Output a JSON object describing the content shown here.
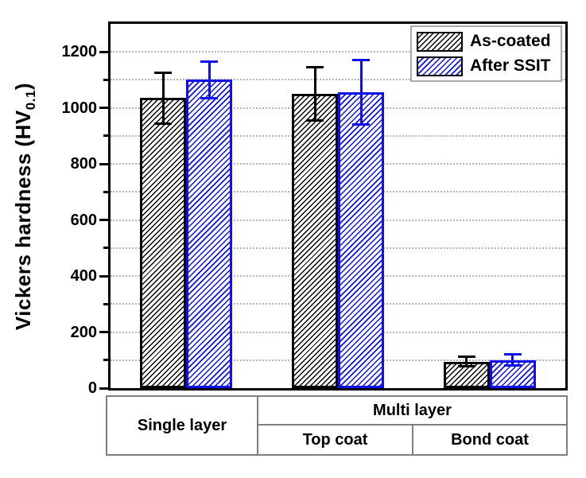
{
  "chart_data": {
    "type": "bar",
    "title": "",
    "categories": [
      "Single layer",
      "Top coat",
      "Bond coat"
    ],
    "series": [
      {
        "name": "As-coated",
        "color": "#000000",
        "hatch": "/",
        "values": [
          1035,
          1050,
          95
        ],
        "errors": [
          90,
          95,
          18
        ]
      },
      {
        "name": "After SSIT",
        "color": "#0f0fee",
        "hatch": "/",
        "values": [
          1100,
          1055,
          100
        ],
        "errors": [
          65,
          115,
          20
        ]
      }
    ],
    "ylabel": "Vickers hardness (HV0.1)",
    "ylabel_parts": {
      "prefix": "Vickers hardness (HV",
      "sub": "0.1",
      "suffix": ")"
    },
    "ylim": [
      0,
      1300
    ],
    "y_major_ticks": [
      0,
      200,
      400,
      600,
      800,
      1000,
      1200
    ],
    "y_minor_step": 100,
    "grid": {
      "style": "dotted",
      "color": "#b5b5b5",
      "step": 100,
      "orientation": "horizontal"
    },
    "legend_position": "top-right",
    "bar_fill": "white with diagonal hatch",
    "x_axis_table": {
      "single": "Single layer",
      "multi": "Multi layer",
      "top": "Top coat",
      "bond": "Bond coat"
    }
  }
}
